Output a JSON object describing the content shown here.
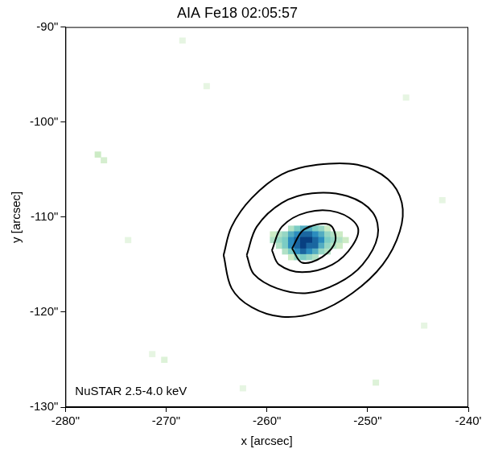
{
  "chart_data": {
    "type": "heatmap",
    "title": "AIA Fe18 02:05:57",
    "x_label": "x [arcsec]",
    "y_label": "y [arcsec]",
    "annotation": "NuSTAR 2.5-4.0 keV",
    "xlim": [
      -280,
      -240
    ],
    "ylim": [
      -130,
      -90
    ],
    "xticks": [
      {
        "value": -280,
        "label": "-280\""
      },
      {
        "value": -270,
        "label": "-270\""
      },
      {
        "value": -260,
        "label": "-260\""
      },
      {
        "value": -250,
        "label": "-250\""
      },
      {
        "value": -240,
        "label": "-240'"
      }
    ],
    "yticks": [
      {
        "value": -130,
        "label": "-130\""
      },
      {
        "value": -120,
        "label": "-120\""
      },
      {
        "value": -110,
        "label": "-110\""
      },
      {
        "value": -100,
        "label": "-100\""
      },
      {
        "value": -90,
        "label": "-90\""
      }
    ],
    "grid": false,
    "pixel_size": 0.6,
    "clim": [
      0,
      1
    ],
    "cells": [
      [
        -257.6,
        -111.2,
        0.4
      ],
      [
        -257.0,
        -111.2,
        0.6
      ],
      [
        -256.4,
        -111.2,
        0.7
      ],
      [
        -255.8,
        -111.2,
        0.7
      ],
      [
        -255.2,
        -111.2,
        0.6
      ],
      [
        -254.6,
        -111.2,
        0.5
      ],
      [
        -254.0,
        -111.2,
        0.3
      ],
      [
        -259.4,
        -111.8,
        0.3
      ],
      [
        -258.8,
        -111.8,
        0.4
      ],
      [
        -258.2,
        -111.8,
        0.5
      ],
      [
        -257.6,
        -111.8,
        0.7
      ],
      [
        -257.0,
        -111.8,
        0.8
      ],
      [
        -256.4,
        -111.8,
        0.9
      ],
      [
        -255.8,
        -111.8,
        0.9
      ],
      [
        -255.2,
        -111.8,
        0.8
      ],
      [
        -254.6,
        -111.8,
        0.7
      ],
      [
        -254.0,
        -111.8,
        0.5
      ],
      [
        -253.4,
        -111.8,
        0.4
      ],
      [
        -252.8,
        -111.8,
        0.3
      ],
      [
        -259.4,
        -112.4,
        0.4
      ],
      [
        -258.8,
        -112.4,
        0.5
      ],
      [
        -258.2,
        -112.4,
        0.6
      ],
      [
        -257.6,
        -112.4,
        0.8
      ],
      [
        -257.0,
        -112.4,
        0.9
      ],
      [
        -256.4,
        -112.4,
        1.0
      ],
      [
        -255.8,
        -112.4,
        1.0
      ],
      [
        -255.2,
        -112.4,
        0.9
      ],
      [
        -254.6,
        -112.4,
        0.8
      ],
      [
        -254.0,
        -112.4,
        0.6
      ],
      [
        -253.4,
        -112.4,
        0.5
      ],
      [
        -252.8,
        -112.4,
        0.4
      ],
      [
        -252.2,
        -112.4,
        0.3
      ],
      [
        -258.8,
        -113.0,
        0.4
      ],
      [
        -258.2,
        -113.0,
        0.6
      ],
      [
        -257.6,
        -113.0,
        0.8
      ],
      [
        -257.0,
        -113.0,
        0.9
      ],
      [
        -256.4,
        -113.0,
        1.0
      ],
      [
        -255.8,
        -113.0,
        0.9
      ],
      [
        -255.2,
        -113.0,
        0.9
      ],
      [
        -254.6,
        -113.0,
        0.7
      ],
      [
        -254.0,
        -113.0,
        0.5
      ],
      [
        -253.4,
        -113.0,
        0.4
      ],
      [
        -252.8,
        -113.0,
        0.3
      ],
      [
        -258.2,
        -113.6,
        0.4
      ],
      [
        -257.6,
        -113.6,
        0.6
      ],
      [
        -257.0,
        -113.6,
        0.8
      ],
      [
        -256.4,
        -113.6,
        0.9
      ],
      [
        -255.8,
        -113.6,
        0.8
      ],
      [
        -255.2,
        -113.6,
        0.7
      ],
      [
        -254.6,
        -113.6,
        0.5
      ],
      [
        -254.0,
        -113.6,
        0.4
      ],
      [
        -257.6,
        -114.2,
        0.3
      ],
      [
        -257.0,
        -114.2,
        0.5
      ],
      [
        -256.4,
        -114.2,
        0.6
      ],
      [
        -255.8,
        -114.2,
        0.5
      ],
      [
        -255.2,
        -114.2,
        0.4
      ],
      [
        -276.8,
        -103.4,
        0.3
      ],
      [
        -276.2,
        -104.0,
        0.25
      ],
      [
        -270.2,
        -125.0,
        0.2
      ],
      [
        -271.4,
        -124.4,
        0.15
      ],
      [
        -266.0,
        -96.2,
        0.15
      ],
      [
        -246.2,
        -97.4,
        0.15
      ],
      [
        -244.4,
        -121.4,
        0.15
      ],
      [
        -249.2,
        -127.4,
        0.2
      ],
      [
        -262.4,
        -128.0,
        0.15
      ],
      [
        -273.8,
        -112.4,
        0.15
      ],
      [
        -242.6,
        -108.2,
        0.15
      ],
      [
        -268.4,
        -91.4,
        0.15
      ]
    ],
    "contours": [
      {
        "color": "#000000",
        "points": [
          [
            -264.3,
            -114.0
          ],
          [
            -263.5,
            -111.0
          ],
          [
            -261.5,
            -108.0
          ],
          [
            -258.5,
            -105.5
          ],
          [
            -255.0,
            -104.5
          ],
          [
            -251.0,
            -104.5
          ],
          [
            -248.0,
            -106.0
          ],
          [
            -246.6,
            -108.5
          ],
          [
            -246.8,
            -111.5
          ],
          [
            -248.5,
            -115.0
          ],
          [
            -251.5,
            -118.0
          ],
          [
            -255.0,
            -120.0
          ],
          [
            -258.5,
            -120.5
          ],
          [
            -261.5,
            -119.5
          ],
          [
            -263.5,
            -117.5
          ],
          [
            -264.3,
            -114.0
          ]
        ]
      },
      {
        "color": "#000000",
        "points": [
          [
            -262.0,
            -114.0
          ],
          [
            -261.0,
            -111.0
          ],
          [
            -258.5,
            -108.5
          ],
          [
            -255.5,
            -107.5
          ],
          [
            -252.0,
            -107.8
          ],
          [
            -249.5,
            -109.5
          ],
          [
            -249.0,
            -112.0
          ],
          [
            -250.5,
            -115.0
          ],
          [
            -253.0,
            -117.0
          ],
          [
            -256.0,
            -118.0
          ],
          [
            -259.0,
            -117.5
          ],
          [
            -261.3,
            -116.0
          ],
          [
            -262.0,
            -114.0
          ]
        ]
      },
      {
        "color": "#000000",
        "points": [
          [
            -259.5,
            -113.5
          ],
          [
            -258.5,
            -111.0
          ],
          [
            -256.0,
            -109.5
          ],
          [
            -253.0,
            -109.5
          ],
          [
            -251.0,
            -111.0
          ],
          [
            -251.5,
            -113.0
          ],
          [
            -253.5,
            -115.0
          ],
          [
            -256.5,
            -115.8
          ],
          [
            -258.8,
            -115.0
          ],
          [
            -259.5,
            -113.5
          ]
        ]
      },
      {
        "color": "#000000",
        "points": [
          [
            -257.5,
            -113.3
          ],
          [
            -256.3,
            -111.3
          ],
          [
            -253.8,
            -110.8
          ],
          [
            -253.2,
            -112.5
          ],
          [
            -254.5,
            -114.2
          ],
          [
            -256.5,
            -114.8
          ],
          [
            -257.5,
            -113.3
          ]
        ]
      }
    ]
  }
}
